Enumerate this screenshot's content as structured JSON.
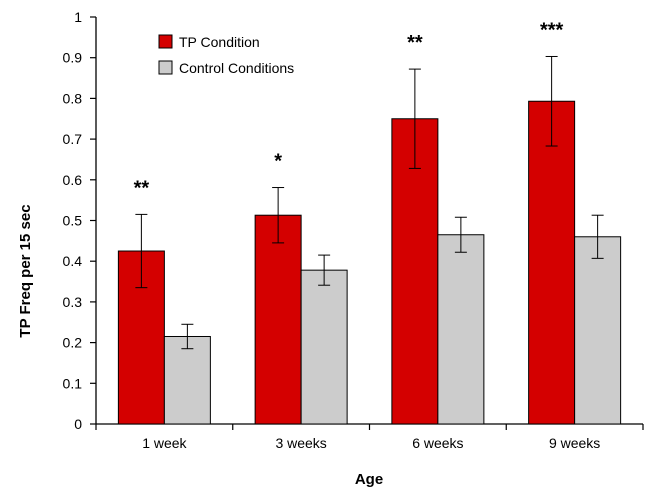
{
  "chart_data": {
    "type": "bar",
    "title": "",
    "xlabel": "Age",
    "ylabel": "TP Freq per 15 sec",
    "ylim": [
      0,
      1
    ],
    "yticks": [
      "0",
      "0.1",
      "0.2",
      "0.3",
      "0.4",
      "0.5",
      "0.6",
      "0.7",
      "0.8",
      "0.9",
      "1"
    ],
    "categories": [
      "1 week",
      "3 weeks",
      "6 weeks",
      "9 weeks"
    ],
    "series": [
      {
        "name": "TP Condition",
        "color": "#d40000",
        "values": [
          0.425,
          0.513,
          0.75,
          0.793
        ],
        "error": [
          0.09,
          0.068,
          0.122,
          0.11
        ]
      },
      {
        "name": "Control Conditions",
        "color": "#cccccc",
        "values": [
          0.215,
          0.378,
          0.465,
          0.46
        ],
        "error": [
          0.03,
          0.037,
          0.043,
          0.053
        ]
      }
    ],
    "significance": [
      "**",
      "*",
      "**",
      "***"
    ],
    "legend_position": "top-left",
    "grid": false
  }
}
